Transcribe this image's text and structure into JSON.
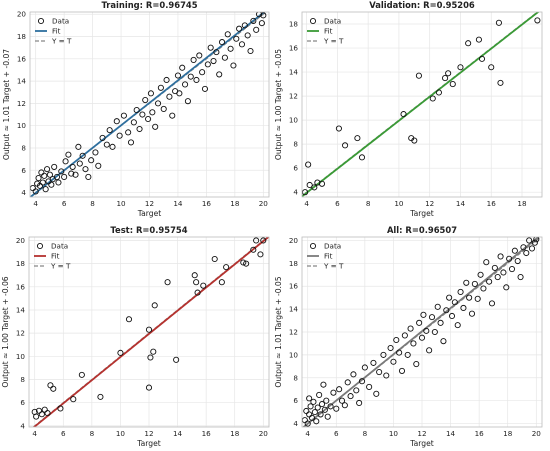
{
  "chart_data": [
    {
      "type": "scatter",
      "title": "Training: R=0.96745",
      "xlabel": "Target",
      "ylabel": "Output ~= 1.01 Target + -0.07",
      "xlim": [
        3.6,
        20.4
      ],
      "ylim": [
        3.6,
        20.2
      ],
      "xticks": [
        4,
        6,
        8,
        10,
        12,
        14,
        16,
        18,
        20
      ],
      "yticks": [
        4,
        6,
        8,
        10,
        12,
        14,
        16,
        18,
        20
      ],
      "grid": true,
      "legend_position": "top-left",
      "legend": [
        "Data",
        "Fit",
        "Y = T"
      ],
      "fit": {
        "slope": 1.01,
        "intercept": -0.07,
        "color": "#2e6f9e"
      },
      "identity": {
        "color": "#888888"
      },
      "marker_color": "#111111",
      "points": [
        [
          3.8,
          4.4
        ],
        [
          4.0,
          4.1
        ],
        [
          4.1,
          4.8
        ],
        [
          4.2,
          5.3
        ],
        [
          4.3,
          4.6
        ],
        [
          4.4,
          5.8
        ],
        [
          4.5,
          4.9
        ],
        [
          4.6,
          5.5
        ],
        [
          4.7,
          4.3
        ],
        [
          4.8,
          6.1
        ],
        [
          4.9,
          5.0
        ],
        [
          5.0,
          5.6
        ],
        [
          5.1,
          4.7
        ],
        [
          5.2,
          5.2
        ],
        [
          5.3,
          6.3
        ],
        [
          5.5,
          5.4
        ],
        [
          5.6,
          4.9
        ],
        [
          5.8,
          5.9
        ],
        [
          6.0,
          5.4
        ],
        [
          6.1,
          6.8
        ],
        [
          6.3,
          7.4
        ],
        [
          6.5,
          5.7
        ],
        [
          6.6,
          6.3
        ],
        [
          6.8,
          5.6
        ],
        [
          7.0,
          8.1
        ],
        [
          7.1,
          6.6
        ],
        [
          7.3,
          7.3
        ],
        [
          7.5,
          6.1
        ],
        [
          7.7,
          5.4
        ],
        [
          7.9,
          6.9
        ],
        [
          8.2,
          7.6
        ],
        [
          8.4,
          6.4
        ],
        [
          8.7,
          8.9
        ],
        [
          9.0,
          8.3
        ],
        [
          9.2,
          9.6
        ],
        [
          9.4,
          8.1
        ],
        [
          9.7,
          10.4
        ],
        [
          9.9,
          9.1
        ],
        [
          10.2,
          10.9
        ],
        [
          10.5,
          9.4
        ],
        [
          10.7,
          8.5
        ],
        [
          10.9,
          10.3
        ],
        [
          11.1,
          11.4
        ],
        [
          11.3,
          9.7
        ],
        [
          11.5,
          11.0
        ],
        [
          11.7,
          12.3
        ],
        [
          11.9,
          10.6
        ],
        [
          12.1,
          12.9
        ],
        [
          12.2,
          11.2
        ],
        [
          12.4,
          9.9
        ],
        [
          12.6,
          12.0
        ],
        [
          12.8,
          13.4
        ],
        [
          13.0,
          11.5
        ],
        [
          13.2,
          14.1
        ],
        [
          13.4,
          12.6
        ],
        [
          13.6,
          10.9
        ],
        [
          13.8,
          13.1
        ],
        [
          14.0,
          14.5
        ],
        [
          14.1,
          12.9
        ],
        [
          14.3,
          15.2
        ],
        [
          14.5,
          13.7
        ],
        [
          14.7,
          12.2
        ],
        [
          14.9,
          14.4
        ],
        [
          15.1,
          15.9
        ],
        [
          15.3,
          14.1
        ],
        [
          15.5,
          16.3
        ],
        [
          15.7,
          14.8
        ],
        [
          15.9,
          13.3
        ],
        [
          16.1,
          15.5
        ],
        [
          16.3,
          17.0
        ],
        [
          16.5,
          15.8
        ],
        [
          16.7,
          16.6
        ],
        [
          16.9,
          14.6
        ],
        [
          17.1,
          17.5
        ],
        [
          17.3,
          16.1
        ],
        [
          17.5,
          18.2
        ],
        [
          17.7,
          16.9
        ],
        [
          17.9,
          15.4
        ],
        [
          18.1,
          17.8
        ],
        [
          18.3,
          18.7
        ],
        [
          18.5,
          17.3
        ],
        [
          18.7,
          19.0
        ],
        [
          18.9,
          18.1
        ],
        [
          19.1,
          16.7
        ],
        [
          19.3,
          19.4
        ],
        [
          19.5,
          18.6
        ],
        [
          19.7,
          20.0
        ],
        [
          19.9,
          19.2
        ],
        [
          20.0,
          19.9
        ]
      ]
    },
    {
      "type": "scatter",
      "title": "Validation: R=0.95206",
      "xlabel": "Target",
      "ylabel": "Output ~= 1.00 Target + -0.05",
      "xlim": [
        3.7,
        19.3
      ],
      "ylim": [
        3.6,
        19.0
      ],
      "xticks": [
        4,
        6,
        8,
        10,
        12,
        14,
        16,
        18
      ],
      "yticks": [
        4,
        6,
        8,
        10,
        12,
        14,
        16,
        18
      ],
      "grid": true,
      "legend_position": "top-left",
      "legend": [
        "Data",
        "Fit",
        "Y = T"
      ],
      "fit": {
        "slope": 1.0,
        "intercept": -0.05,
        "color": "#3a9a36"
      },
      "identity": {
        "color": "#888888"
      },
      "marker_color": "#111111",
      "points": [
        [
          3.9,
          4.0
        ],
        [
          4.1,
          6.3
        ],
        [
          4.2,
          4.6
        ],
        [
          4.5,
          4.4
        ],
        [
          4.7,
          4.8
        ],
        [
          5.0,
          4.7
        ],
        [
          6.1,
          9.3
        ],
        [
          6.5,
          7.9
        ],
        [
          7.3,
          8.5
        ],
        [
          7.6,
          6.9
        ],
        [
          10.3,
          10.5
        ],
        [
          10.8,
          8.5
        ],
        [
          11.0,
          8.3
        ],
        [
          11.3,
          13.7
        ],
        [
          12.2,
          11.8
        ],
        [
          12.6,
          12.3
        ],
        [
          13.0,
          13.5
        ],
        [
          13.2,
          13.9
        ],
        [
          13.5,
          13.0
        ],
        [
          14.0,
          14.4
        ],
        [
          14.5,
          16.4
        ],
        [
          15.2,
          16.7
        ],
        [
          15.4,
          15.1
        ],
        [
          16.0,
          14.4
        ],
        [
          16.5,
          18.1
        ],
        [
          16.6,
          13.1
        ],
        [
          19.0,
          18.3
        ]
      ]
    },
    {
      "type": "scatter",
      "title": "Test: R=0.95754",
      "xlabel": "Target",
      "ylabel": "Output ~= 1.00 Target + -0.06",
      "xlim": [
        3.6,
        20.4
      ],
      "ylim": [
        3.9,
        20.3
      ],
      "xticks": [
        4,
        6,
        8,
        10,
        12,
        14,
        16,
        18,
        20
      ],
      "yticks": [
        4,
        6,
        8,
        10,
        12,
        14,
        16,
        18,
        20
      ],
      "grid": true,
      "legend_position": "top-left",
      "legend": [
        "Data",
        "Fit",
        "Y = T"
      ],
      "fit": {
        "slope": 1.0,
        "intercept": -0.06,
        "color": "#b5322f"
      },
      "identity": {
        "color": "#888888"
      },
      "marker_color": "#111111",
      "points": [
        [
          4.0,
          5.2
        ],
        [
          4.1,
          4.8
        ],
        [
          4.3,
          5.3
        ],
        [
          4.5,
          5.0
        ],
        [
          4.7,
          5.4
        ],
        [
          4.9,
          5.1
        ],
        [
          5.1,
          7.5
        ],
        [
          5.3,
          7.2
        ],
        [
          5.8,
          5.5
        ],
        [
          6.7,
          6.3
        ],
        [
          7.3,
          8.4
        ],
        [
          8.6,
          6.5
        ],
        [
          10.0,
          10.3
        ],
        [
          10.6,
          13.2
        ],
        [
          12.0,
          12.3
        ],
        [
          12.0,
          7.3
        ],
        [
          12.1,
          9.9
        ],
        [
          12.3,
          10.4
        ],
        [
          12.4,
          14.4
        ],
        [
          13.3,
          16.4
        ],
        [
          13.9,
          9.7
        ],
        [
          15.2,
          17.0
        ],
        [
          15.3,
          16.4
        ],
        [
          15.4,
          15.5
        ],
        [
          15.8,
          16.1
        ],
        [
          16.6,
          18.4
        ],
        [
          17.1,
          16.4
        ],
        [
          17.4,
          17.7
        ],
        [
          18.6,
          18.1
        ],
        [
          18.8,
          18.0
        ],
        [
          19.3,
          19.2
        ],
        [
          19.5,
          20.0
        ],
        [
          19.8,
          18.8
        ],
        [
          20.0,
          20.0
        ]
      ]
    },
    {
      "type": "scatter",
      "title": "All: R=0.96507",
      "xlabel": "Target",
      "ylabel": "Output ~= 1.01 Target + -0.05",
      "xlim": [
        3.6,
        20.4
      ],
      "ylim": [
        3.7,
        20.3
      ],
      "xticks": [
        4,
        6,
        8,
        10,
        12,
        14,
        16,
        18,
        20
      ],
      "yticks": [
        4,
        6,
        8,
        10,
        12,
        14,
        16,
        18,
        20
      ],
      "grid": true,
      "legend_position": "top-left",
      "legend": [
        "Data",
        "Fit",
        "Y = T"
      ],
      "fit": {
        "slope": 1.01,
        "intercept": -0.05,
        "color": "#7a7a7a"
      },
      "identity": {
        "color": "#888888"
      },
      "marker_color": "#111111",
      "points": [
        [
          3.8,
          4.3
        ],
        [
          3.9,
          5.1
        ],
        [
          4.0,
          4.0
        ],
        [
          4.1,
          4.8
        ],
        [
          4.1,
          6.2
        ],
        [
          4.2,
          5.5
        ],
        [
          4.3,
          4.5
        ],
        [
          4.4,
          5.9
        ],
        [
          4.5,
          5.0
        ],
        [
          4.6,
          4.2
        ],
        [
          4.7,
          5.4
        ],
        [
          4.8,
          6.5
        ],
        [
          4.9,
          4.8
        ],
        [
          5.0,
          5.7
        ],
        [
          5.1,
          7.4
        ],
        [
          5.2,
          5.2
        ],
        [
          5.3,
          6.0
        ],
        [
          5.4,
          4.6
        ],
        [
          5.6,
          5.5
        ],
        [
          5.8,
          6.7
        ],
        [
          6.0,
          5.3
        ],
        [
          6.2,
          7.0
        ],
        [
          6.4,
          6.0
        ],
        [
          6.6,
          5.6
        ],
        [
          6.8,
          7.6
        ],
        [
          7.0,
          6.4
        ],
        [
          7.2,
          8.3
        ],
        [
          7.4,
          6.9
        ],
        [
          7.6,
          5.8
        ],
        [
          7.8,
          7.7
        ],
        [
          8.0,
          8.9
        ],
        [
          8.3,
          7.2
        ],
        [
          8.6,
          9.3
        ],
        [
          8.8,
          6.6
        ],
        [
          9.0,
          8.5
        ],
        [
          9.3,
          10.0
        ],
        [
          9.5,
          8.2
        ],
        [
          9.8,
          10.6
        ],
        [
          10.0,
          9.4
        ],
        [
          10.2,
          11.3
        ],
        [
          10.4,
          10.2
        ],
        [
          10.6,
          8.6
        ],
        [
          10.8,
          11.7
        ],
        [
          11.0,
          10.0
        ],
        [
          11.2,
          12.3
        ],
        [
          11.4,
          11.0
        ],
        [
          11.6,
          9.2
        ],
        [
          11.8,
          12.8
        ],
        [
          12.0,
          11.5
        ],
        [
          12.1,
          13.5
        ],
        [
          12.3,
          12.1
        ],
        [
          12.5,
          10.4
        ],
        [
          12.7,
          13.3
        ],
        [
          12.9,
          12.0
        ],
        [
          13.1,
          14.2
        ],
        [
          13.3,
          12.8
        ],
        [
          13.5,
          11.2
        ],
        [
          13.7,
          13.9
        ],
        [
          13.9,
          15.0
        ],
        [
          14.1,
          13.4
        ],
        [
          14.3,
          14.6
        ],
        [
          14.5,
          12.6
        ],
        [
          14.7,
          15.5
        ],
        [
          14.9,
          14.1
        ],
        [
          15.1,
          16.3
        ],
        [
          15.3,
          15.0
        ],
        [
          15.5,
          13.6
        ],
        [
          15.7,
          16.2
        ],
        [
          15.9,
          14.9
        ],
        [
          16.1,
          17.0
        ],
        [
          16.3,
          15.8
        ],
        [
          16.5,
          18.1
        ],
        [
          16.7,
          16.4
        ],
        [
          16.9,
          14.5
        ],
        [
          17.1,
          17.6
        ],
        [
          17.3,
          16.8
        ],
        [
          17.5,
          18.6
        ],
        [
          17.7,
          17.2
        ],
        [
          17.9,
          15.9
        ],
        [
          18.1,
          18.4
        ],
        [
          18.3,
          17.5
        ],
        [
          18.5,
          19.1
        ],
        [
          18.7,
          18.2
        ],
        [
          18.9,
          16.8
        ],
        [
          19.1,
          19.4
        ],
        [
          19.3,
          18.9
        ],
        [
          19.5,
          20.0
        ],
        [
          19.7,
          19.3
        ],
        [
          19.9,
          19.8
        ],
        [
          20.0,
          20.1
        ]
      ]
    }
  ]
}
